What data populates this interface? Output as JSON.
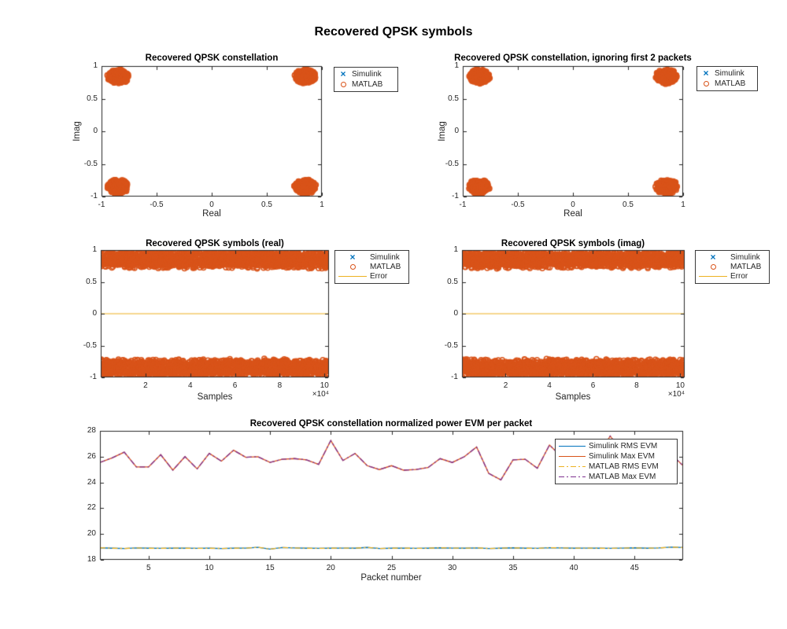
{
  "figure_title": "Recovered QPSK symbols",
  "colors": {
    "simulink_blue": "#0072BD",
    "matlab_orange": "#D95319",
    "error_yellow": "#EDB120",
    "matlab_purple": "#7E2F8E",
    "axis_color": "#262626",
    "title_color": "#000000",
    "background": "#ffffff"
  },
  "chart_data": [
    {
      "id": "qpsk-constellation",
      "type": "scatter",
      "title": "Recovered QPSK constellation",
      "xlabel": "Real",
      "ylabel": "Imag",
      "xlim": [
        -1,
        1
      ],
      "ylim": [
        -1,
        1
      ],
      "xticks": [
        -1,
        -0.5,
        0,
        0.5,
        1
      ],
      "xtick_labels": [
        "-1",
        "-0.5",
        "0",
        "0.5",
        "1"
      ],
      "yticks": [
        1,
        0.5,
        0,
        -0.5,
        -1
      ],
      "ytick_labels": [
        "1",
        "0.5",
        "0",
        "-0.5",
        "-1"
      ],
      "legend": [
        {
          "label": "Simulink",
          "marker": "x",
          "color": "#0072BD"
        },
        {
          "label": "MATLAB",
          "marker": "o",
          "color": "#D95319"
        }
      ],
      "clusters": {
        "centers": [
          [
            -0.85,
            0.84
          ],
          [
            0.85,
            0.84
          ],
          [
            -0.85,
            -0.85
          ],
          [
            0.85,
            -0.85
          ]
        ],
        "rx": 0.08,
        "ry": 0.09,
        "points_per_cluster": 400,
        "color": "#D95319"
      }
    },
    {
      "id": "qpsk-constellation-ignore2",
      "type": "scatter",
      "title": "Recovered QPSK constellation, ignoring first 2 packets",
      "xlabel": "Real",
      "ylabel": "Imag",
      "xlim": [
        -1,
        1
      ],
      "ylim": [
        -1,
        1
      ],
      "xticks": [
        -1,
        -0.5,
        0,
        0.5,
        1
      ],
      "xtick_labels": [
        "-1",
        "-0.5",
        "0",
        "0.5",
        "1"
      ],
      "yticks": [
        1,
        0.5,
        0,
        -0.5,
        -1
      ],
      "ytick_labels": [
        "1",
        "0.5",
        "0",
        "-0.5",
        "-1"
      ],
      "legend": [
        {
          "label": "Simulink",
          "marker": "x",
          "color": "#0072BD"
        },
        {
          "label": "MATLAB",
          "marker": "o",
          "color": "#D95319"
        }
      ],
      "clusters": {
        "centers": [
          [
            -0.85,
            0.84
          ],
          [
            0.85,
            0.84
          ],
          [
            -0.85,
            -0.85
          ],
          [
            0.85,
            -0.85
          ]
        ],
        "rx": 0.08,
        "ry": 0.09,
        "points_per_cluster": 400,
        "color": "#D95319"
      }
    },
    {
      "id": "qpsk-symbols-real",
      "type": "scatter_bands",
      "title": "Recovered QPSK symbols (real)",
      "xlabel": "Samples",
      "x_multiplier": "×10⁴",
      "xlim": [
        0,
        102000
      ],
      "ylim": [
        -1,
        1
      ],
      "xticks": [
        20000,
        40000,
        60000,
        80000,
        100000
      ],
      "xtick_labels": [
        "2",
        "4",
        "6",
        "8",
        "10"
      ],
      "yticks": [
        1,
        0.5,
        0,
        -0.5,
        -1
      ],
      "ytick_labels": [
        "1",
        "0.5",
        "0",
        "-0.5",
        "-1"
      ],
      "bands": {
        "centers": [
          0.85,
          -0.85
        ],
        "half_width": 0.115,
        "points_per_band": 1700,
        "color": "#D95319"
      },
      "error_line_y": 0,
      "legend": [
        {
          "label": "Simulink",
          "marker": "x",
          "color": "#0072BD"
        },
        {
          "label": "MATLAB",
          "marker": "o",
          "color": "#D95319"
        },
        {
          "label": "Error",
          "marker": "line-solid",
          "color": "#EDB120"
        }
      ]
    },
    {
      "id": "qpsk-symbols-imag",
      "type": "scatter_bands",
      "title": "Recovered QPSK symbols (imag)",
      "xlabel": "Samples",
      "x_multiplier": "×10⁴",
      "xlim": [
        0,
        102000
      ],
      "ylim": [
        -1,
        1
      ],
      "xticks": [
        20000,
        40000,
        60000,
        80000,
        100000
      ],
      "xtick_labels": [
        "2",
        "4",
        "6",
        "8",
        "10"
      ],
      "yticks": [
        1,
        0.5,
        0,
        -0.5,
        -1
      ],
      "ytick_labels": [
        "1",
        "0.5",
        "0",
        "-0.5",
        "-1"
      ],
      "bands": {
        "centers": [
          0.85,
          -0.85
        ],
        "half_width": 0.115,
        "points_per_band": 1700,
        "color": "#D95319"
      },
      "error_line_y": 0,
      "legend": [
        {
          "label": "Simulink",
          "marker": "x",
          "color": "#0072BD"
        },
        {
          "label": "MATLAB",
          "marker": "o",
          "color": "#D95319"
        },
        {
          "label": "Error",
          "marker": "line-solid",
          "color": "#EDB120"
        }
      ]
    },
    {
      "id": "evm-per-packet",
      "type": "line",
      "title": "Recovered QPSK constellation normalized power EVM per packet",
      "xlabel": "Packet number",
      "xlim": [
        1,
        49
      ],
      "ylim": [
        18,
        28
      ],
      "xticks": [
        5,
        10,
        15,
        20,
        25,
        30,
        35,
        40,
        45
      ],
      "xtick_labels": [
        "5",
        "10",
        "15",
        "20",
        "25",
        "30",
        "35",
        "40",
        "45"
      ],
      "yticks": [
        28,
        26,
        24,
        22,
        20,
        18
      ],
      "ytick_labels": [
        "28",
        "26",
        "24",
        "22",
        "20",
        "18"
      ],
      "x": [
        1,
        2,
        3,
        4,
        5,
        6,
        7,
        8,
        9,
        10,
        11,
        12,
        13,
        14,
        15,
        16,
        17,
        18,
        19,
        20,
        21,
        22,
        23,
        24,
        25,
        26,
        27,
        28,
        29,
        30,
        31,
        32,
        33,
        34,
        35,
        36,
        37,
        38,
        39,
        40,
        41,
        42,
        43,
        44,
        45,
        46,
        47,
        48,
        49
      ],
      "series": [
        {
          "name": "Simulink RMS EVM",
          "color": "#0072BD",
          "style": "solid",
          "values": [
            18.93,
            18.9,
            18.88,
            18.92,
            18.9,
            18.89,
            18.91,
            18.9,
            18.89,
            18.9,
            18.88,
            18.9,
            18.91,
            18.97,
            18.83,
            18.95,
            18.92,
            18.9,
            18.89,
            18.9,
            18.91,
            18.9,
            18.96,
            18.88,
            18.9,
            18.91,
            18.89,
            18.9,
            18.93,
            18.91,
            18.9,
            18.92,
            18.88,
            18.9,
            18.93,
            18.9,
            18.89,
            18.94,
            18.92,
            18.9,
            18.91,
            18.9,
            18.89,
            18.91,
            18.93,
            18.9,
            18.92,
            18.98,
            18.95
          ]
        },
        {
          "name": "Simulink Max EVM",
          "color": "#D95319",
          "style": "solid",
          "values": [
            25.55,
            25.9,
            26.35,
            25.2,
            25.2,
            26.15,
            24.95,
            26.0,
            25.05,
            26.25,
            25.65,
            26.5,
            25.95,
            26.0,
            25.55,
            25.8,
            25.85,
            25.75,
            25.4,
            27.25,
            25.7,
            26.25,
            25.3,
            25.0,
            25.3,
            24.95,
            25.0,
            25.15,
            25.85,
            25.55,
            26.0,
            26.75,
            24.7,
            24.2,
            25.75,
            25.8,
            25.1,
            26.9,
            26.0,
            25.85,
            25.95,
            26.1,
            27.6,
            26.3,
            25.9,
            25.8,
            25.95,
            26.2,
            25.3
          ]
        },
        {
          "name": "MATLAB RMS EVM",
          "color": "#EDB120",
          "style": "dashdot",
          "values": [
            18.93,
            18.9,
            18.88,
            18.92,
            18.9,
            18.89,
            18.91,
            18.9,
            18.89,
            18.9,
            18.88,
            18.9,
            18.91,
            18.97,
            18.83,
            18.95,
            18.92,
            18.9,
            18.89,
            18.9,
            18.91,
            18.9,
            18.96,
            18.88,
            18.9,
            18.91,
            18.89,
            18.9,
            18.93,
            18.91,
            18.9,
            18.92,
            18.88,
            18.9,
            18.93,
            18.9,
            18.89,
            18.94,
            18.92,
            18.9,
            18.91,
            18.9,
            18.89,
            18.91,
            18.93,
            18.9,
            18.92,
            18.98,
            18.95
          ]
        },
        {
          "name": "MATLAB Max EVM",
          "color": "#7E2F8E",
          "style": "dashdot",
          "values": [
            25.55,
            25.9,
            26.35,
            25.2,
            25.2,
            26.15,
            24.95,
            26.0,
            25.05,
            26.25,
            25.65,
            26.5,
            25.95,
            26.0,
            25.55,
            25.8,
            25.85,
            25.75,
            25.4,
            27.25,
            25.7,
            26.25,
            25.3,
            25.0,
            25.3,
            24.95,
            25.0,
            25.15,
            25.85,
            25.55,
            26.0,
            26.75,
            24.7,
            24.2,
            25.75,
            25.8,
            25.1,
            26.9,
            26.0,
            25.85,
            25.95,
            26.1,
            27.6,
            26.3,
            25.9,
            25.8,
            25.95,
            26.2,
            25.3
          ]
        }
      ],
      "legend": [
        {
          "label": "Simulink RMS EVM",
          "marker": "line-solid",
          "color": "#0072BD"
        },
        {
          "label": "Simulink Max EVM",
          "marker": "line-solid",
          "color": "#D95319"
        },
        {
          "label": "MATLAB RMS EVM",
          "marker": "line-dashdot",
          "color": "#EDB120"
        },
        {
          "label": "MATLAB Max EVM",
          "marker": "line-dashdot",
          "color": "#7E2F8E"
        }
      ]
    }
  ]
}
